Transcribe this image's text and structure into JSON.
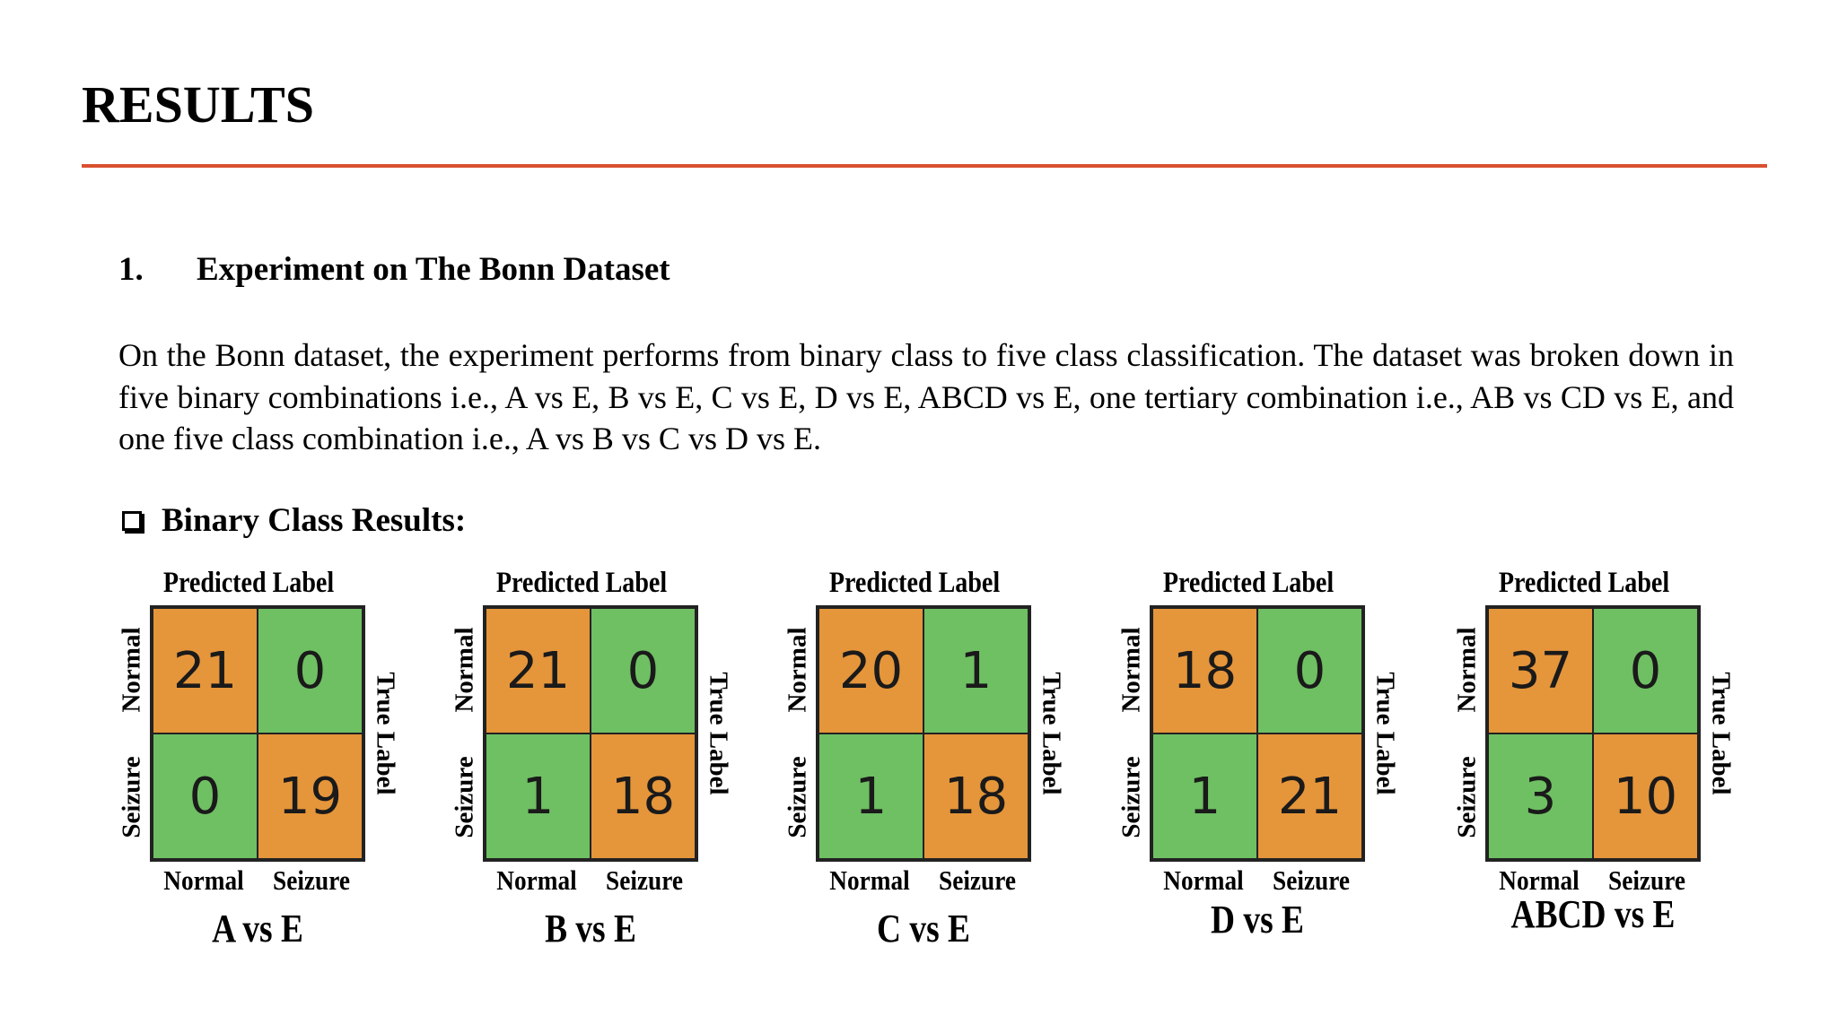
{
  "title": "RESULTS",
  "section": {
    "number": "1.",
    "heading": "Experiment on The Bonn Dataset"
  },
  "paragraph": "On the Bonn dataset, the experiment performs from binary class to five class classification. The dataset was broken down in five binary combinations i.e., A vs E, B vs E, C vs E, D vs E, ABCD vs E, one tertiary combination i.e., AB vs CD vs E, and one five class combination i.e., A vs B vs C vs D vs E.",
  "subheading": "Binary Class Results:",
  "colors": {
    "rule": "#d9502f",
    "correct": "#e5953a",
    "incorrect": "#6fbf63"
  },
  "matrices": [
    {
      "predicted_label": "Predicted Label",
      "true_label": "True Label",
      "row_normal": "Normal",
      "row_seizure": "Seizure",
      "col_normal": "Normal",
      "col_seizure": "Seizure",
      "tl": "21",
      "tr": "0",
      "bl": "0",
      "br": "19",
      "caption": "A vs E"
    },
    {
      "predicted_label": "Predicted Label",
      "true_label": "True Label",
      "row_normal": "Normal",
      "row_seizure": "Seizure",
      "col_normal": "Normal",
      "col_seizure": "Seizure",
      "tl": "21",
      "tr": "0",
      "bl": "1",
      "br": "18",
      "caption": "B vs E"
    },
    {
      "predicted_label": "Predicted Label",
      "true_label": "True Label",
      "row_normal": "Normal",
      "row_seizure": "Seizure",
      "col_normal": "Normal",
      "col_seizure": "Seizure",
      "tl": "20",
      "tr": "1",
      "bl": "1",
      "br": "18",
      "caption": "C vs E"
    },
    {
      "predicted_label": "Predicted Label",
      "true_label": "True Label",
      "row_normal": "Normal",
      "row_seizure": "Seizure",
      "col_normal": "Normal",
      "col_seizure": "Seizure",
      "tl": "18",
      "tr": "0",
      "bl": "1",
      "br": "21",
      "caption": "D vs E"
    },
    {
      "predicted_label": "Predicted Label",
      "true_label": "True Label",
      "row_normal": "Normal",
      "row_seizure": "Seizure",
      "col_normal": "Normal",
      "col_seizure": "Seizure",
      "tl": "37",
      "tr": "0",
      "bl": "3",
      "br": "10",
      "caption": "ABCD vs E"
    }
  ]
}
